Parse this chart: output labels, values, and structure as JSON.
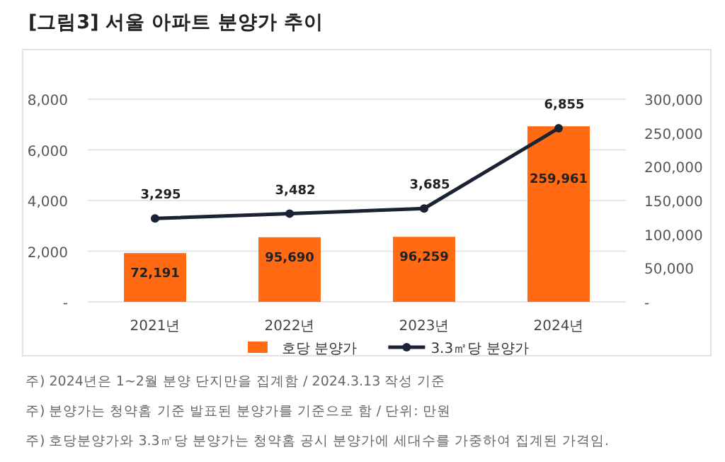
{
  "chart_data": {
    "type": "bar",
    "title": "[그림3] 서울 아파트 분양가 추이",
    "categories": [
      "2021년",
      "2022년",
      "2023년",
      "2024년"
    ],
    "series": [
      {
        "name": "호당 분양가",
        "axis": "y2",
        "color": "#ff6a13",
        "values": [
          72191,
          95690,
          96259,
          259961
        ],
        "value_labels": [
          "72,191",
          "95,690",
          "96,259",
          "259,961"
        ]
      },
      {
        "name": "3.3㎡당 분양가",
        "type": "line",
        "axis": "y",
        "color": "#1b2233",
        "marker": "circle",
        "values": [
          3295,
          3482,
          3685,
          6855
        ],
        "value_labels": [
          "3,295",
          "3,482",
          "3,685",
          "6,855"
        ]
      }
    ],
    "ylim": [
      0,
      8000
    ],
    "yticks": [
      {
        "value": 0,
        "label": "-"
      },
      {
        "value": 2000,
        "label": "2,000"
      },
      {
        "value": 4000,
        "label": "4,000"
      },
      {
        "value": 6000,
        "label": "6,000"
      },
      {
        "value": 8000,
        "label": "8,000"
      }
    ],
    "y2lim": [
      0,
      300000
    ],
    "y2ticks": [
      {
        "value": 0,
        "label": "-"
      },
      {
        "value": 50000,
        "label": "50,000"
      },
      {
        "value": 100000,
        "label": "100,000"
      },
      {
        "value": 150000,
        "label": "150,000"
      },
      {
        "value": 200000,
        "label": "200,000"
      },
      {
        "value": 250000,
        "label": "250,000"
      },
      {
        "value": 300000,
        "label": "300,000"
      }
    ],
    "grid": "y",
    "legend": "bottom",
    "annotations": [
      "주) 2024년은 1~2월 분양 단지만을 집계함 / 2024.3.13 작성 기준",
      "주) 분양가는 청약홈 기준 발표된 분양가를 기준으로 함 / 단위: 만원",
      "주) 호당분양가와 3.3㎡당 분양가는 청약홈 공시 분양가에 세대수를 가중하여 집계된 가격임."
    ]
  }
}
